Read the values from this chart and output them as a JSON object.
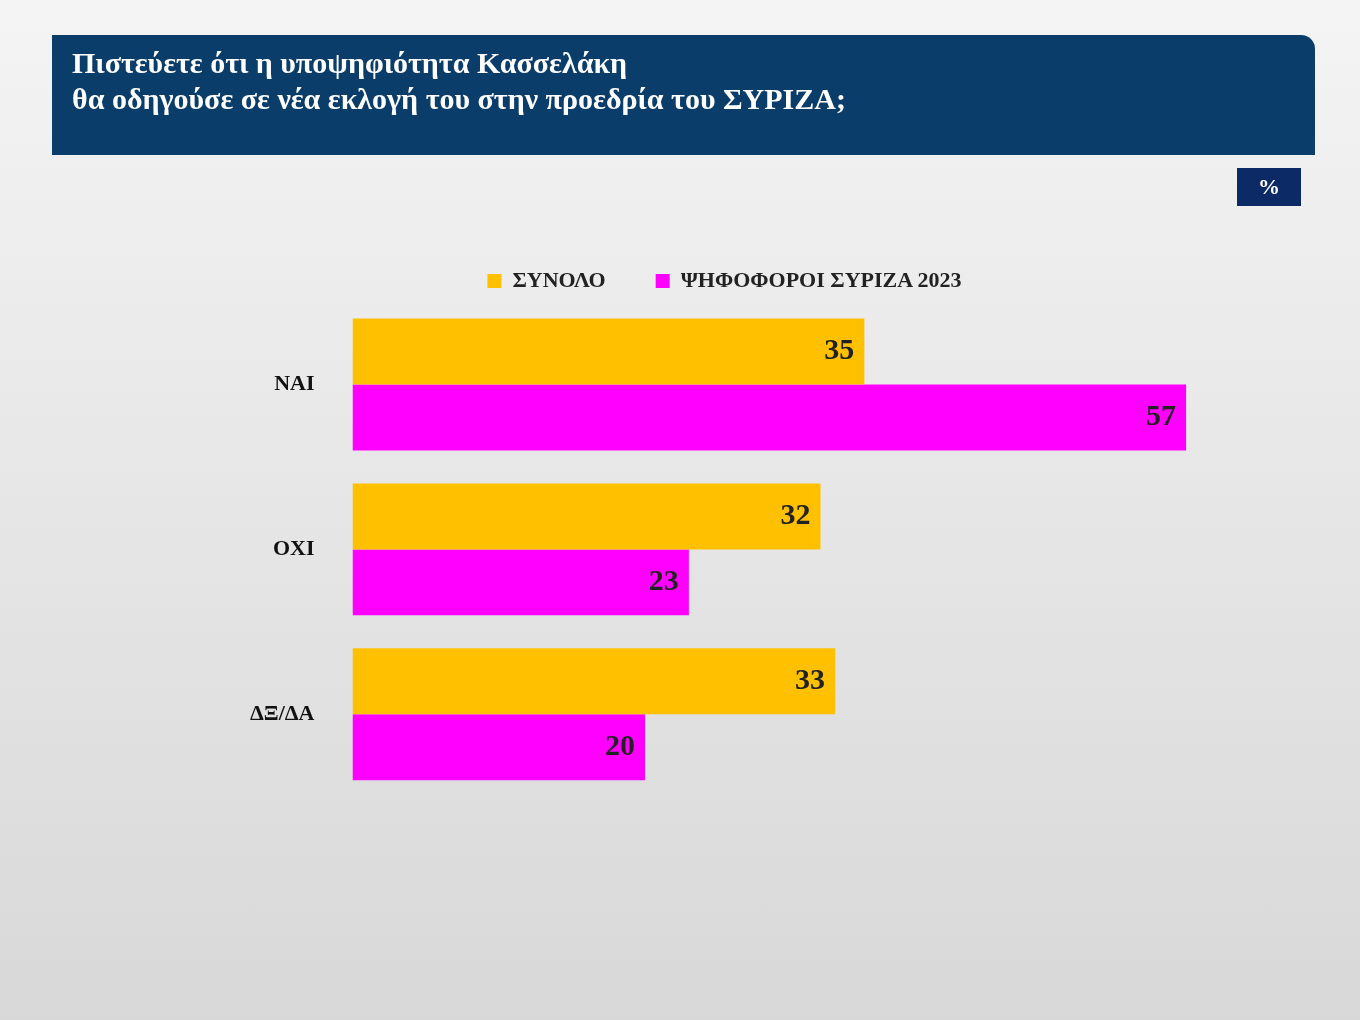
{
  "chart_data": {
    "type": "bar",
    "orientation": "horizontal",
    "title": "Πιστεύετε ότι η υποψηφιότητα Κασσελάκη\nθα οδηγούσε σε νέα εκλογή του στην προεδρία του ΣΥΡΙΖΑ;",
    "annotations": [
      "%"
    ],
    "categories": [
      "ΝΑΙ",
      "ΟΧΙ",
      "ΔΞ/ΔΑ"
    ],
    "series": [
      {
        "name": "ΣΥΝΟΛΟ",
        "color": "#ffc000",
        "values": [
          35,
          32,
          33
        ]
      },
      {
        "name": "ΨΗΦΟΦΟΡΟΙ ΣΥΡΙΖΑ 2023",
        "color": "#ff00ff",
        "values": [
          57,
          23,
          20
        ]
      }
    ],
    "data_labels": true,
    "legend": "top",
    "grid": false,
    "tick_labels": "y"
  }
}
